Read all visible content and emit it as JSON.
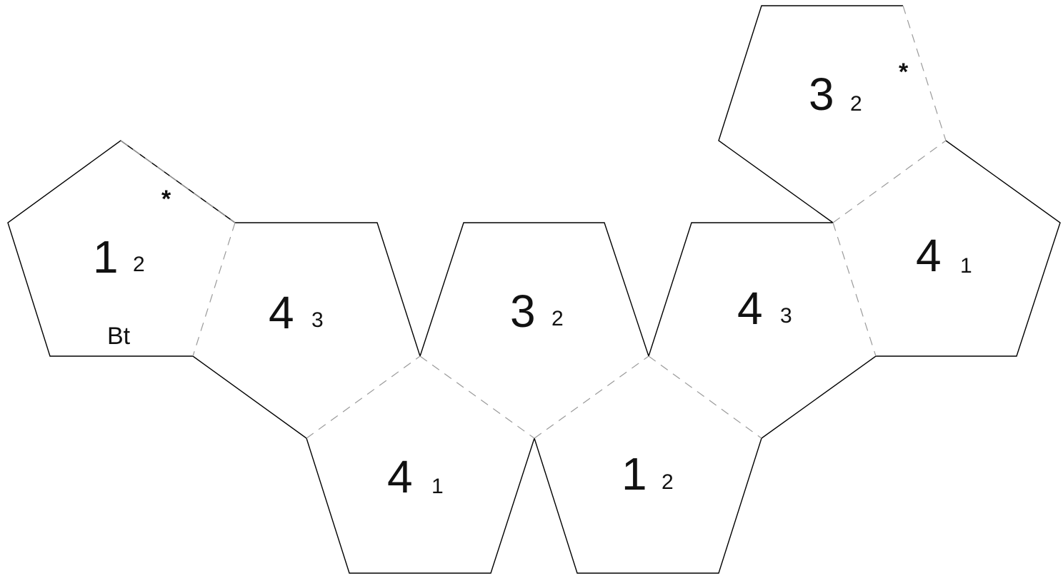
{
  "faces": [
    {
      "id": "a",
      "big": "1",
      "small": "2",
      "star": "*",
      "note": "Bt"
    },
    {
      "id": "b",
      "big": "4",
      "small": "3"
    },
    {
      "id": "c",
      "big": "3",
      "small": "2"
    },
    {
      "id": "d",
      "big": "4",
      "small": "3"
    },
    {
      "id": "e",
      "big": "4",
      "small": "1"
    },
    {
      "id": "f",
      "big": "3",
      "small": "2",
      "star": "*"
    },
    {
      "id": "g",
      "big": "4",
      "small": "1"
    },
    {
      "id": "h",
      "big": "1",
      "small": "2"
    }
  ],
  "colors": {
    "cut_line": "#000000",
    "fold_line": "#9a9a9a",
    "background": "#ffffff"
  }
}
